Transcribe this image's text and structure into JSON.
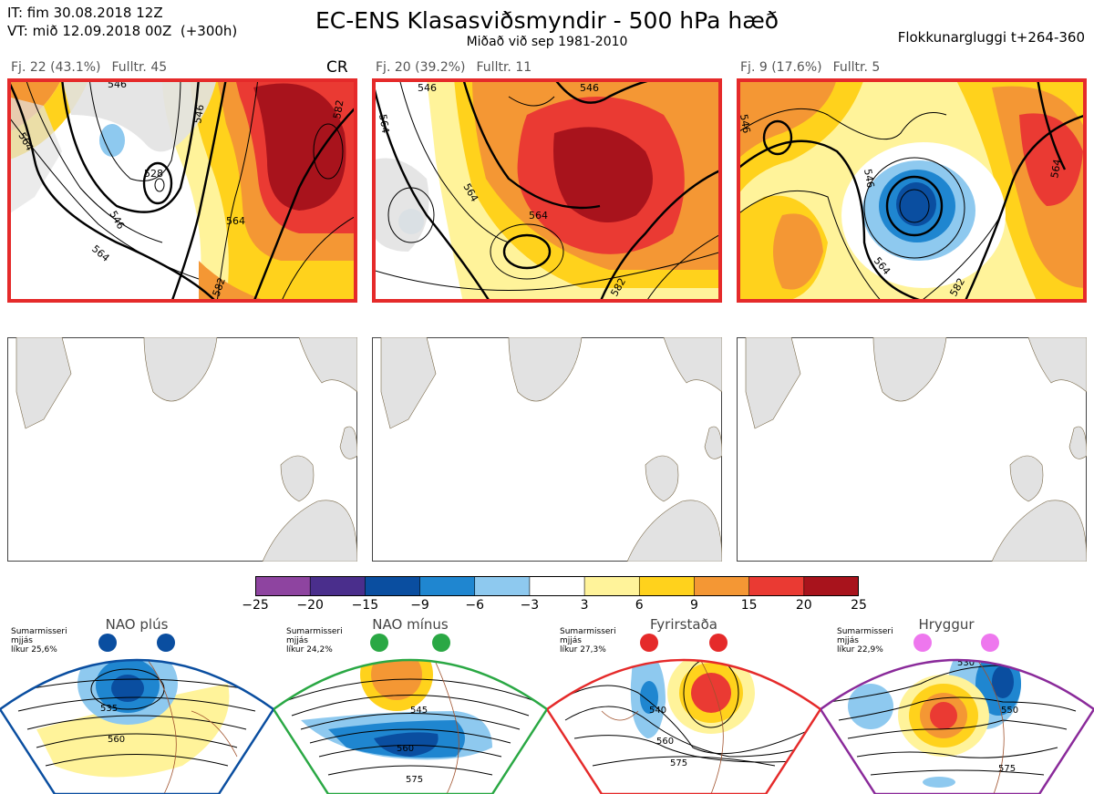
{
  "header": {
    "it_line": "IT: fim 30.08.2018 12Z",
    "vt_line": "VT: mið 12.09.2018 00Z  (+300h)",
    "title": "EC-ENS Klasasviðsmyndir - 500 hPa hæð",
    "subtitle": "Miðað við sep 1981-2010",
    "window": "Flokkunargluggi t+264-360"
  },
  "clusters": [
    {
      "fj": "Fj. 22 (43.1%)",
      "fulltr": "Fulltr. 45",
      "tag": "CR",
      "contour_labels": [
        "528",
        "546",
        "564",
        "582",
        "546",
        "564",
        "582",
        "564",
        "546"
      ]
    },
    {
      "fj": "Fj. 20 (39.2%)",
      "fulltr": "Fulltr. 11",
      "tag": "",
      "contour_labels": [
        "546",
        "564",
        "564",
        "582",
        "546",
        "564"
      ]
    },
    {
      "fj": "Fj. 9 (17.6%)",
      "fulltr": "Fulltr. 5",
      "tag": "",
      "contour_labels": [
        "546",
        "564",
        "582",
        "564",
        "546"
      ]
    }
  ],
  "colorbar": {
    "ticks": [
      "−25",
      "−20",
      "−15",
      "−9",
      "−6",
      "−3",
      "3",
      "6",
      "9",
      "15",
      "20",
      "25"
    ],
    "colors": [
      "#8e44a0",
      "#4a2e8c",
      "#0a4ea0",
      "#1f86d0",
      "#8ec9ef",
      "#ffffff",
      "#fff39a",
      "#ffd21c",
      "#f49734",
      "#ea3a33",
      "#a8131c"
    ]
  },
  "legend": [
    {
      "title": "NAO plús",
      "note": "Sumarmisseri\nmjjás\nlíkur 25,6%",
      "labels": [
        "535",
        "560"
      ],
      "border": "#0a4ea0",
      "dot": "#0a4ea0"
    },
    {
      "title": "NAO mínus",
      "note": "Sumarmisseri\nmjjás\nlíkur 24,2%",
      "labels": [
        "545",
        "560",
        "575"
      ],
      "border": "#2aa844",
      "dot": "#2aa844"
    },
    {
      "title": "Fyrirstaða",
      "note": "Sumarmisseri\nmjjás\nlíkur 27,3%",
      "labels": [
        "540",
        "560",
        "575"
      ],
      "border": "#e52a2a",
      "dot": "#e52a2a"
    },
    {
      "title": "Hryggur",
      "note": "Sumarmisseri\nmjjás\nlíkur 22,9%",
      "labels": [
        "530",
        "550",
        "575"
      ],
      "border": "#8a2a9a",
      "dot": "#ee77ee"
    }
  ]
}
